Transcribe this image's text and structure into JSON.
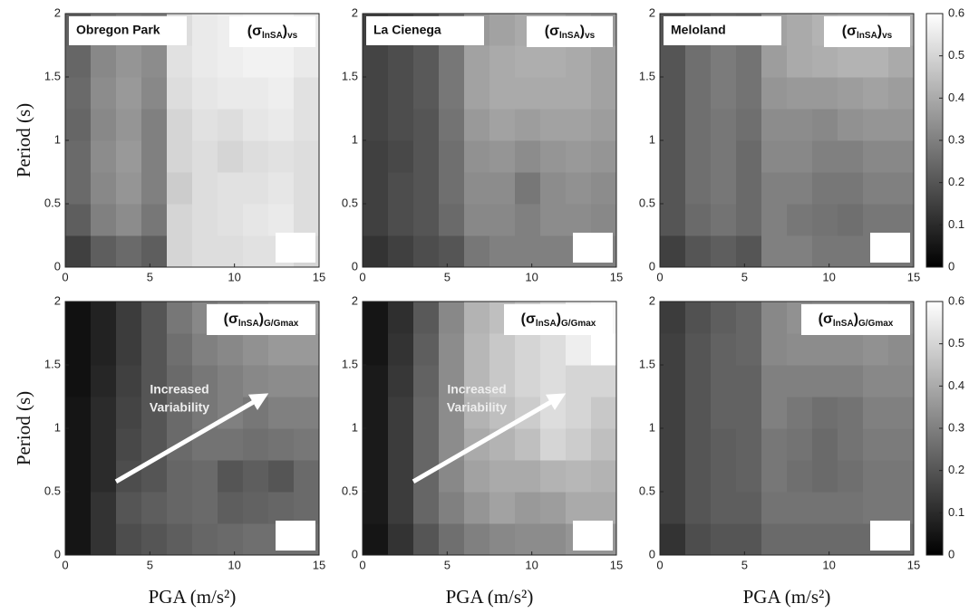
{
  "chart_data": [
    {
      "type": "heatmap",
      "title": "Obregon Park",
      "annotation": [
        "(σ",
        "lnSA",
        ")",
        "vs"
      ],
      "ylabel": "Period (s)",
      "xlim": [
        0,
        15
      ],
      "ylim": [
        0,
        2
      ],
      "xticks": [
        0,
        5,
        10,
        15
      ],
      "yticks": [
        0,
        0.5,
        1,
        1.5,
        2
      ],
      "clim": [
        0,
        0.6
      ],
      "values": [
        [
          0.15,
          0.22,
          0.25,
          0.22,
          0.5,
          0.52,
          0.52,
          0.53,
          0.53,
          0.5
        ],
        [
          0.22,
          0.3,
          0.33,
          0.28,
          0.5,
          0.52,
          0.53,
          0.54,
          0.55,
          0.52
        ],
        [
          0.25,
          0.32,
          0.35,
          0.3,
          0.48,
          0.52,
          0.53,
          0.53,
          0.54,
          0.52
        ],
        [
          0.25,
          0.33,
          0.36,
          0.3,
          0.5,
          0.52,
          0.5,
          0.52,
          0.53,
          0.52
        ],
        [
          0.24,
          0.32,
          0.35,
          0.3,
          0.5,
          0.53,
          0.52,
          0.54,
          0.55,
          0.53
        ],
        [
          0.25,
          0.33,
          0.36,
          0.32,
          0.52,
          0.54,
          0.55,
          0.55,
          0.56,
          0.53
        ],
        [
          0.24,
          0.32,
          0.35,
          0.33,
          0.53,
          0.55,
          0.56,
          0.57,
          0.57,
          0.55
        ],
        [
          0.23,
          0.3,
          0.33,
          0.32,
          0.52,
          0.55,
          0.56,
          0.57,
          0.57,
          0.55
        ]
      ]
    },
    {
      "type": "heatmap",
      "title": "La Cienega",
      "annotation": [
        "(σ",
        "lnSA",
        ")",
        "vs"
      ],
      "xlim": [
        0,
        15
      ],
      "ylim": [
        0,
        2
      ],
      "xticks": [
        0,
        5,
        10,
        15
      ],
      "yticks": [
        0,
        0.5,
        1,
        1.5,
        2
      ],
      "clim": [
        0,
        0.6
      ],
      "values": [
        [
          0.12,
          0.15,
          0.18,
          0.2,
          0.28,
          0.3,
          0.3,
          0.3,
          0.3,
          0.3
        ],
        [
          0.15,
          0.18,
          0.2,
          0.25,
          0.32,
          0.32,
          0.3,
          0.33,
          0.33,
          0.32
        ],
        [
          0.15,
          0.18,
          0.2,
          0.26,
          0.33,
          0.33,
          0.28,
          0.33,
          0.34,
          0.33
        ],
        [
          0.15,
          0.17,
          0.2,
          0.26,
          0.34,
          0.35,
          0.33,
          0.35,
          0.36,
          0.35
        ],
        [
          0.16,
          0.18,
          0.2,
          0.27,
          0.36,
          0.38,
          0.37,
          0.38,
          0.38,
          0.37
        ],
        [
          0.16,
          0.18,
          0.21,
          0.28,
          0.38,
          0.4,
          0.4,
          0.4,
          0.4,
          0.38
        ],
        [
          0.16,
          0.18,
          0.21,
          0.28,
          0.38,
          0.4,
          0.41,
          0.41,
          0.4,
          0.38
        ],
        [
          0.15,
          0.17,
          0.2,
          0.27,
          0.36,
          0.38,
          0.4,
          0.4,
          0.38,
          0.36
        ]
      ]
    },
    {
      "type": "heatmap",
      "title": "Meloland",
      "annotation": [
        "(σ",
        "lnSA",
        ")",
        "vs"
      ],
      "xlim": [
        0,
        15
      ],
      "ylim": [
        0,
        2
      ],
      "xticks": [
        0,
        5,
        10,
        15
      ],
      "yticks": [
        0,
        0.5,
        1,
        1.5,
        2
      ],
      "clim": [
        0,
        0.6
      ],
      "values": [
        [
          0.15,
          0.2,
          0.22,
          0.2,
          0.3,
          0.3,
          0.28,
          0.28,
          0.28,
          0.28
        ],
        [
          0.2,
          0.25,
          0.27,
          0.25,
          0.3,
          0.28,
          0.27,
          0.26,
          0.28,
          0.28
        ],
        [
          0.2,
          0.26,
          0.28,
          0.25,
          0.3,
          0.3,
          0.28,
          0.28,
          0.3,
          0.3
        ],
        [
          0.2,
          0.26,
          0.28,
          0.25,
          0.32,
          0.32,
          0.3,
          0.3,
          0.32,
          0.32
        ],
        [
          0.2,
          0.26,
          0.28,
          0.26,
          0.33,
          0.33,
          0.32,
          0.34,
          0.35,
          0.35
        ],
        [
          0.2,
          0.26,
          0.29,
          0.27,
          0.35,
          0.36,
          0.36,
          0.37,
          0.38,
          0.37
        ],
        [
          0.2,
          0.26,
          0.29,
          0.27,
          0.37,
          0.4,
          0.41,
          0.42,
          0.42,
          0.4
        ],
        [
          0.2,
          0.25,
          0.28,
          0.27,
          0.38,
          0.4,
          0.42,
          0.43,
          0.43,
          0.42
        ]
      ]
    },
    {
      "type": "heatmap",
      "annotation": [
        "(σ",
        "lnSA",
        ")",
        "G/Gmax"
      ],
      "arrow_text": [
        "Increased",
        "Variability"
      ],
      "ylabel": "Period (s)",
      "xlabel": "PGA (m/s²)",
      "xlim": [
        0,
        15
      ],
      "ylim": [
        0,
        2
      ],
      "xticks": [
        0,
        5,
        10,
        15
      ],
      "yticks": [
        0,
        0.5,
        1,
        1.5,
        2
      ],
      "clim": [
        0,
        0.6
      ],
      "values": [
        [
          0.05,
          0.12,
          0.18,
          0.2,
          0.22,
          0.24,
          0.25,
          0.26,
          0.26,
          0.26
        ],
        [
          0.05,
          0.12,
          0.2,
          0.22,
          0.24,
          0.25,
          0.22,
          0.23,
          0.24,
          0.25
        ],
        [
          0.05,
          0.1,
          0.18,
          0.2,
          0.24,
          0.25,
          0.2,
          0.22,
          0.2,
          0.25
        ],
        [
          0.05,
          0.1,
          0.17,
          0.2,
          0.25,
          0.27,
          0.27,
          0.26,
          0.27,
          0.28
        ],
        [
          0.05,
          0.1,
          0.16,
          0.2,
          0.25,
          0.28,
          0.3,
          0.28,
          0.3,
          0.3
        ],
        [
          0.04,
          0.09,
          0.15,
          0.2,
          0.25,
          0.28,
          0.3,
          0.32,
          0.33,
          0.33
        ],
        [
          0.04,
          0.08,
          0.14,
          0.2,
          0.26,
          0.3,
          0.32,
          0.34,
          0.36,
          0.36
        ],
        [
          0.04,
          0.08,
          0.14,
          0.2,
          0.28,
          0.32,
          0.34,
          0.36,
          0.38,
          0.38
        ]
      ]
    },
    {
      "type": "heatmap",
      "annotation": [
        "(σ",
        "lnSA",
        ")",
        "G/Gmax"
      ],
      "arrow_text": [
        "Increased",
        "Variability"
      ],
      "xlabel": "PGA (m/s²)",
      "xlim": [
        0,
        15
      ],
      "ylim": [
        0,
        2
      ],
      "xticks": [
        0,
        5,
        10,
        15
      ],
      "yticks": [
        0,
        0.5,
        1,
        1.5,
        2
      ],
      "clim": [
        0,
        0.6
      ],
      "values": [
        [
          0.05,
          0.12,
          0.2,
          0.26,
          0.3,
          0.32,
          0.33,
          0.33,
          0.35,
          0.35
        ],
        [
          0.06,
          0.14,
          0.24,
          0.3,
          0.35,
          0.38,
          0.36,
          0.37,
          0.4,
          0.4
        ],
        [
          0.06,
          0.14,
          0.24,
          0.32,
          0.38,
          0.4,
          0.4,
          0.42,
          0.43,
          0.42
        ],
        [
          0.06,
          0.14,
          0.24,
          0.33,
          0.4,
          0.42,
          0.45,
          0.5,
          0.48,
          0.45
        ],
        [
          0.06,
          0.14,
          0.24,
          0.33,
          0.42,
          0.45,
          0.48,
          0.52,
          0.5,
          0.47
        ],
        [
          0.06,
          0.13,
          0.23,
          0.33,
          0.43,
          0.47,
          0.5,
          0.52,
          0.5,
          0.5
        ],
        [
          0.05,
          0.12,
          0.22,
          0.33,
          0.43,
          0.47,
          0.5,
          0.52,
          0.56,
          0.6
        ],
        [
          0.05,
          0.11,
          0.21,
          0.32,
          0.42,
          0.45,
          0.48,
          0.52,
          0.57,
          0.58
        ]
      ]
    },
    {
      "type": "heatmap",
      "annotation": [
        "(σ",
        "lnSA",
        ")",
        "G/Gmax"
      ],
      "xlabel": "PGA (m/s²)",
      "xlim": [
        0,
        15
      ],
      "ylim": [
        0,
        2
      ],
      "xticks": [
        0,
        5,
        10,
        15
      ],
      "yticks": [
        0,
        0.5,
        1,
        1.5,
        2
      ],
      "clim": [
        0,
        0.6
      ],
      "values": [
        [
          0.12,
          0.18,
          0.2,
          0.2,
          0.25,
          0.25,
          0.25,
          0.25,
          0.25,
          0.25
        ],
        [
          0.15,
          0.2,
          0.22,
          0.22,
          0.27,
          0.27,
          0.27,
          0.27,
          0.28,
          0.28
        ],
        [
          0.15,
          0.2,
          0.22,
          0.23,
          0.28,
          0.26,
          0.25,
          0.26,
          0.28,
          0.28
        ],
        [
          0.15,
          0.2,
          0.22,
          0.23,
          0.28,
          0.27,
          0.25,
          0.27,
          0.29,
          0.29
        ],
        [
          0.15,
          0.2,
          0.23,
          0.23,
          0.3,
          0.28,
          0.26,
          0.27,
          0.3,
          0.3
        ],
        [
          0.15,
          0.2,
          0.23,
          0.23,
          0.3,
          0.3,
          0.3,
          0.3,
          0.32,
          0.32
        ],
        [
          0.15,
          0.2,
          0.23,
          0.24,
          0.32,
          0.33,
          0.33,
          0.33,
          0.34,
          0.33
        ],
        [
          0.14,
          0.19,
          0.22,
          0.24,
          0.32,
          0.34,
          0.35,
          0.35,
          0.35,
          0.34
        ]
      ]
    }
  ],
  "colorbars": [
    {
      "clim": [
        0,
        0.6
      ],
      "ticks": [
        0,
        0.1,
        0.2,
        0.3,
        0.4,
        0.5,
        0.6
      ]
    },
    {
      "clim": [
        0,
        0.6
      ],
      "ticks": [
        0,
        0.1,
        0.2,
        0.3,
        0.4,
        0.5,
        0.6
      ]
    }
  ]
}
